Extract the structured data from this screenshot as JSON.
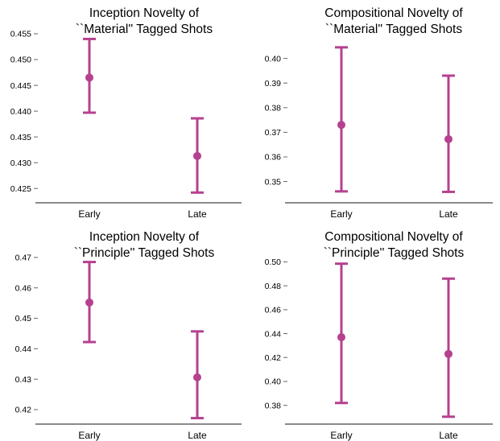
{
  "chart_data": [
    {
      "type": "errorbar",
      "title": [
        "Inception Novelty of",
        "``Material'' Tagged Shots"
      ],
      "categories": [
        "Early",
        "Late"
      ],
      "ylim": [
        0.423,
        0.455
      ],
      "yticks": [
        "0.425",
        "0.430",
        "0.435",
        "0.440",
        "0.445",
        "0.450",
        "0.455"
      ],
      "points": [
        {
          "category": "Early",
          "mean": 0.4465,
          "lower": 0.4397,
          "upper": 0.454
        },
        {
          "category": "Late",
          "mean": 0.4313,
          "lower": 0.4242,
          "upper": 0.4386
        }
      ],
      "color": "#b5418f"
    },
    {
      "type": "errorbar",
      "title": [
        "Compositional Novelty of",
        "``Material'' Tagged Shots"
      ],
      "categories": [
        "Early",
        "Late"
      ],
      "ylim": [
        0.343,
        0.41
      ],
      "yticks": [
        "0.35",
        "0.36",
        "0.37",
        "0.38",
        "0.39",
        "0.40"
      ],
      "points": [
        {
          "category": "Early",
          "mean": 0.373,
          "lower": 0.346,
          "upper": 0.4045
        },
        {
          "category": "Late",
          "mean": 0.3672,
          "lower": 0.3458,
          "upper": 0.393
        }
      ],
      "color": "#b5418f"
    },
    {
      "type": "errorbar",
      "title": [
        "Inception Novelty of",
        "``Principle'' Tagged Shots"
      ],
      "categories": [
        "Early",
        "Late"
      ],
      "ylim": [
        0.4155,
        0.4705
      ],
      "yticks": [
        "0.42",
        "0.43",
        "0.44",
        "0.45",
        "0.46",
        "0.47"
      ],
      "points": [
        {
          "category": "Early",
          "mean": 0.4552,
          "lower": 0.4422,
          "upper": 0.4685
        },
        {
          "category": "Late",
          "mean": 0.4306,
          "lower": 0.4172,
          "upper": 0.4457
        }
      ],
      "color": "#b5418f"
    },
    {
      "type": "errorbar",
      "title": [
        "Compositional Novelty of",
        "``Principle'' Tagged Shots"
      ],
      "categories": [
        "Early",
        "Late"
      ],
      "ylim": [
        0.365,
        0.505
      ],
      "yticks": [
        "0.38",
        "0.40",
        "0.42",
        "0.44",
        "0.46",
        "0.48",
        "0.50"
      ],
      "points": [
        {
          "category": "Early",
          "mean": 0.437,
          "lower": 0.382,
          "upper": 0.4985
        },
        {
          "category": "Late",
          "mean": 0.423,
          "lower": 0.3705,
          "upper": 0.486
        }
      ],
      "color": "#b5418f"
    }
  ]
}
